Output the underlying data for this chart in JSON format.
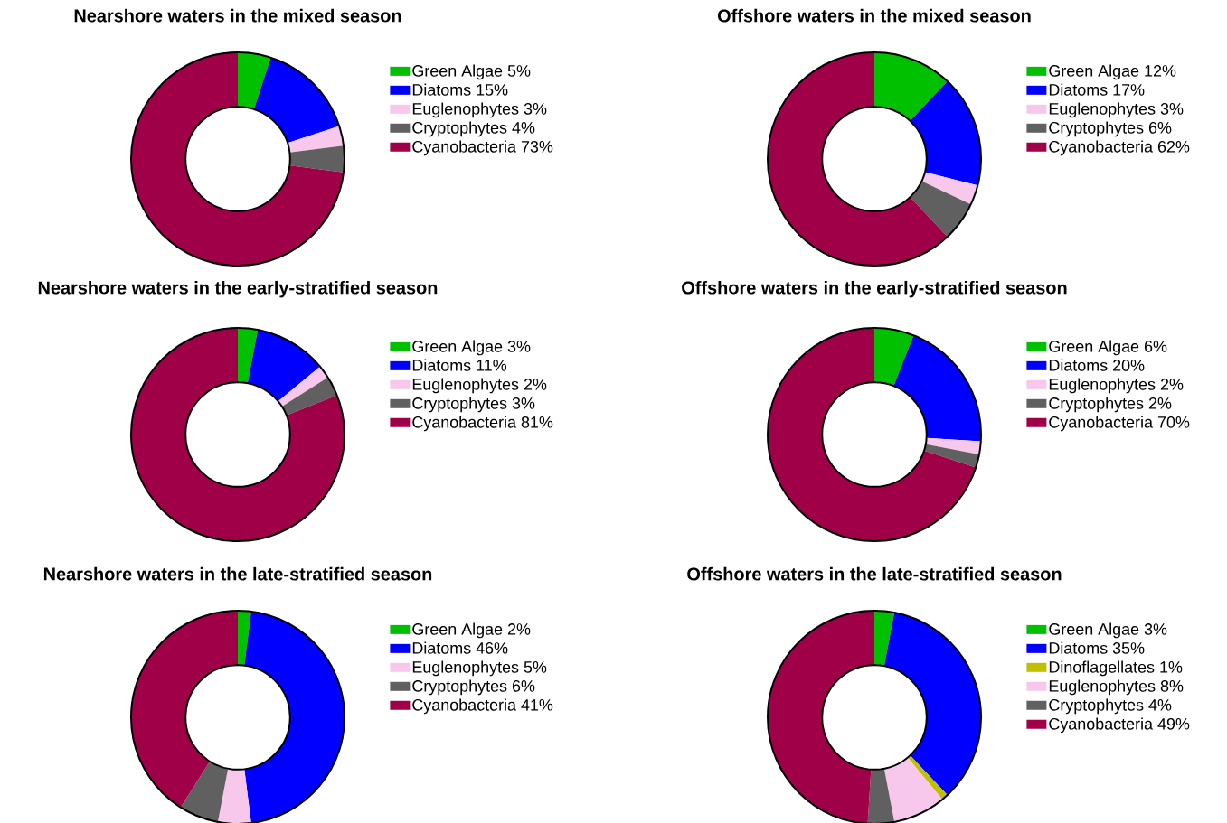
{
  "chart_data": [
    {
      "type": "donut",
      "title": "Nearshore waters in the mixed season",
      "categories": [
        "Green Algae",
        "Diatoms",
        "Euglenophytes",
        "Cryptophytes",
        "Cyanobacteria"
      ],
      "values": [
        5,
        15,
        3,
        4,
        73
      ],
      "value_labels": [
        "5%",
        "15%",
        "3%",
        "4%",
        "73%"
      ],
      "colors": [
        "#00c000",
        "#0000ff",
        "#f8c8ec",
        "#606060",
        "#a00048"
      ],
      "legend": "right"
    },
    {
      "type": "donut",
      "title": "Offshore waters in the mixed season",
      "categories": [
        "Green Algae",
        "Diatoms",
        "Euglenophytes",
        "Cryptophytes",
        "Cyanobacteria"
      ],
      "values": [
        12,
        17,
        3,
        6,
        62
      ],
      "value_labels": [
        "12%",
        "17%",
        "3%",
        "6%",
        "62%"
      ],
      "colors": [
        "#00c000",
        "#0000ff",
        "#f8c8ec",
        "#606060",
        "#a00048"
      ],
      "legend": "right"
    },
    {
      "type": "donut",
      "title": "Nearshore waters in the early-stratified season",
      "categories": [
        "Green Algae",
        "Diatoms",
        "Euglenophytes",
        "Cryptophytes",
        "Cyanobacteria"
      ],
      "values": [
        3,
        11,
        2,
        3,
        81
      ],
      "value_labels": [
        "3%",
        "11%",
        "2%",
        "3%",
        "81%"
      ],
      "colors": [
        "#00c000",
        "#0000ff",
        "#f8c8ec",
        "#606060",
        "#a00048"
      ],
      "legend": "right"
    },
    {
      "type": "donut",
      "title": "Offshore waters in the early-stratified season",
      "categories": [
        "Green Algae",
        "Diatoms",
        "Euglenophytes",
        "Cryptophytes",
        "Cyanobacteria"
      ],
      "values": [
        6,
        20,
        2,
        2,
        70
      ],
      "value_labels": [
        "6%",
        "20%",
        "2%",
        "2%",
        "70%"
      ],
      "colors": [
        "#00c000",
        "#0000ff",
        "#f8c8ec",
        "#606060",
        "#a00048"
      ],
      "legend": "right"
    },
    {
      "type": "donut",
      "title": "Nearshore waters in the late-stratified season",
      "categories": [
        "Green Algae",
        "Diatoms",
        "Euglenophytes",
        "Cryptophytes",
        "Cyanobacteria"
      ],
      "values": [
        2,
        46,
        5,
        6,
        41
      ],
      "value_labels": [
        "2%",
        "46%",
        "5%",
        "6%",
        "41%"
      ],
      "colors": [
        "#00c000",
        "#0000ff",
        "#f8c8ec",
        "#606060",
        "#a00048"
      ],
      "legend": "right"
    },
    {
      "type": "donut",
      "title": "Offshore waters in the late-stratified season",
      "categories": [
        "Green Algae",
        "Diatoms",
        "Dinoflagellates",
        "Euglenophytes",
        "Cryptophytes",
        "Cyanobacteria"
      ],
      "values": [
        3,
        35,
        1,
        8,
        4,
        49
      ],
      "value_labels": [
        "3%",
        "35%",
        "1%",
        "8%",
        "4%",
        "49%"
      ],
      "colors": [
        "#00c000",
        "#0000ff",
        "#c0c000",
        "#f8c8ec",
        "#606060",
        "#a00048"
      ],
      "legend": "right"
    }
  ]
}
